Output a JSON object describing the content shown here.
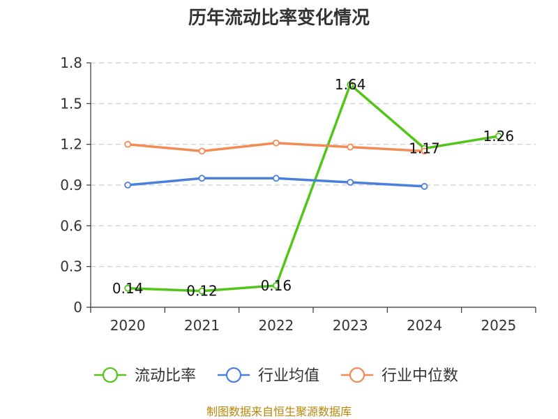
{
  "chart_data": {
    "type": "line",
    "title": "历年流动比率变化情况",
    "xlabel": "",
    "ylabel": "",
    "categories": [
      "2020",
      "2021",
      "2022",
      "2023",
      "2024",
      "2025"
    ],
    "ylim": [
      0,
      1.8
    ],
    "yticks": [
      "0",
      "0.3",
      "0.6",
      "0.9",
      "1.2",
      "1.5",
      "1.8"
    ],
    "grid": true,
    "legend_position": "bottom",
    "series": [
      {
        "name": "流动比率",
        "color": "#52c41a",
        "values": [
          0.14,
          0.12,
          0.16,
          1.64,
          1.17,
          1.26
        ],
        "labels": [
          "0.14",
          "0.12",
          "0.16",
          "1.64",
          "1.17",
          "1.26"
        ]
      },
      {
        "name": "行业均值",
        "color": "#4a7fdb",
        "values": [
          0.9,
          0.95,
          0.95,
          0.92,
          0.89,
          null
        ]
      },
      {
        "name": "行业中位数",
        "color": "#f28b54",
        "values": [
          1.2,
          1.15,
          1.21,
          1.18,
          1.15,
          null
        ]
      }
    ]
  },
  "source": "制图数据来自恒生聚源数据库"
}
